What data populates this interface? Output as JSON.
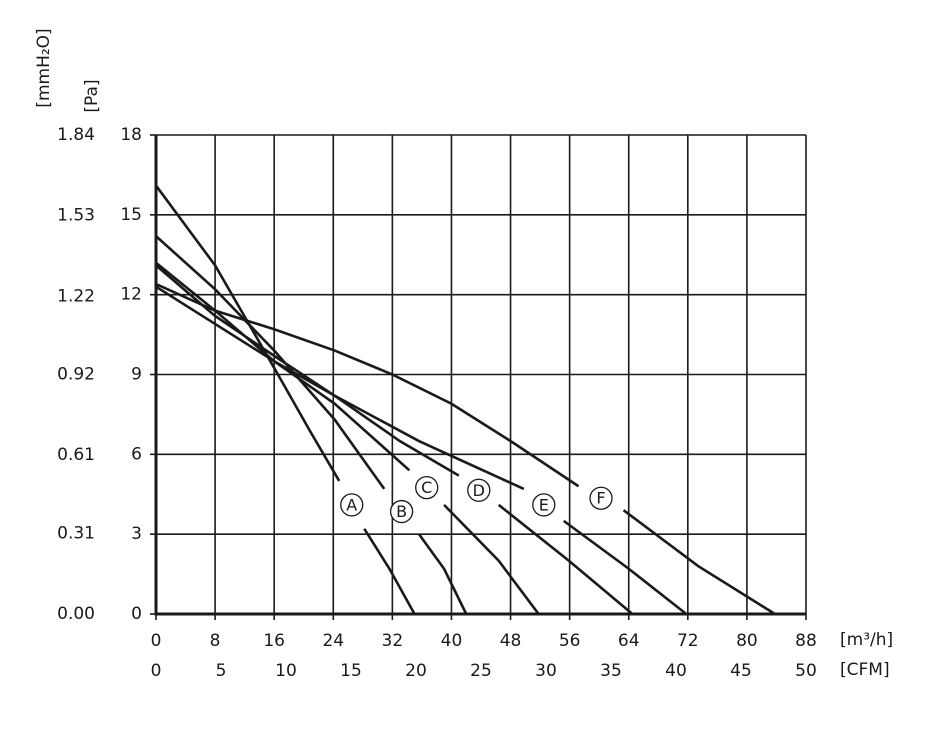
{
  "chart_data": {
    "type": "line",
    "x_label": "[m³/h]",
    "x2_label": "[CFM]",
    "y_label": "[Pa]",
    "y2_label": "[mmH₂O]",
    "xlim": [
      0,
      88
    ],
    "xticks": [
      0,
      8,
      16,
      24,
      32,
      40,
      48,
      56,
      64,
      72,
      80,
      88
    ],
    "x2lim": [
      0,
      50
    ],
    "x2ticks": [
      0,
      5,
      10,
      15,
      20,
      25,
      30,
      35,
      40,
      45,
      50
    ],
    "ylim": [
      0,
      18
    ],
    "yticks": [
      0,
      3,
      6,
      9,
      12,
      15,
      18
    ],
    "y2lim": [
      0,
      1.84
    ],
    "y2ticks": [
      {
        "value": 0,
        "label": "0.00"
      },
      0.31,
      0.61,
      0.92,
      1.22,
      1.53,
      1.84
    ],
    "grid": true,
    "series": [
      {
        "name": "A",
        "color": "#1a1a1a",
        "x": [
          0,
          8,
          16.1,
          20.8,
          24.8,
          null,
          28.2,
          31.6,
          35
        ],
        "values": [
          16.1,
          13.1,
          9.2,
          6.9,
          5.0,
          null,
          3.2,
          1.7,
          0
        ]
      },
      {
        "name": "B",
        "color": "#1a1a1a",
        "x": [
          0,
          8,
          16,
          24.2,
          30.9,
          null,
          35.6,
          39,
          42
        ],
        "values": [
          14.2,
          12.2,
          9.9,
          7.3,
          4.7,
          null,
          3.0,
          1.7,
          0
        ]
      },
      {
        "name": "C",
        "color": "#1a1a1a",
        "x": [
          0,
          8,
          16,
          24.2,
          34.3,
          null,
          39,
          46.4,
          51.8
        ],
        "values": [
          13.2,
          11.4,
          9.5,
          7.9,
          5.4,
          null,
          4.1,
          2.0,
          0
        ]
      },
      {
        "name": "D",
        "color": "#1a1a1a",
        "x": [
          0,
          8,
          16,
          24.2,
          33,
          41,
          null,
          46.4,
          55.9,
          64.5
        ],
        "values": [
          13.1,
          11.2,
          9.7,
          8.2,
          6.5,
          5.2,
          null,
          4.1,
          2.0,
          0
        ]
      },
      {
        "name": "E",
        "color": "#1a1a1a",
        "x": [
          0,
          8,
          16,
          24.2,
          35.6,
          49.8,
          null,
          55.2,
          64,
          71.8
        ],
        "values": [
          12.3,
          10.9,
          9.5,
          8.2,
          6.5,
          4.7,
          null,
          3.5,
          1.7,
          0
        ]
      },
      {
        "name": "F",
        "color": "#1a1a1a",
        "x": [
          0,
          8,
          16,
          24.2,
          32,
          40,
          48,
          57.2,
          null,
          63.3,
          73.4,
          83.8
        ],
        "values": [
          12.4,
          11.4,
          10.7,
          9.9,
          9.0,
          7.9,
          6.5,
          4.8,
          null,
          3.9,
          1.8,
          0
        ]
      }
    ]
  }
}
